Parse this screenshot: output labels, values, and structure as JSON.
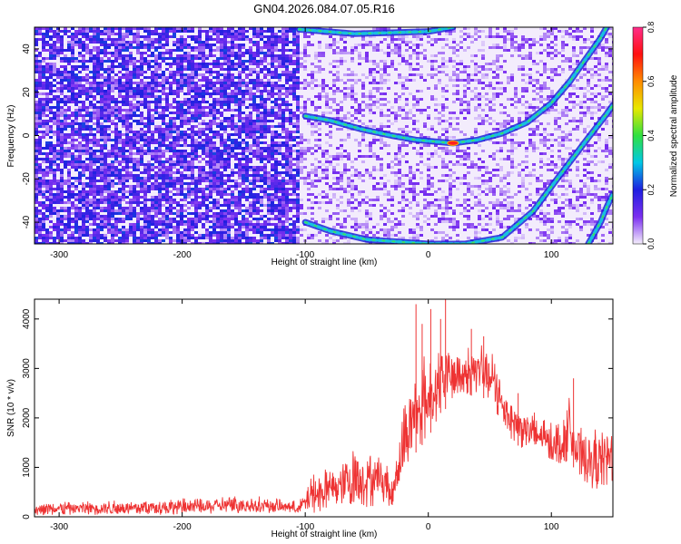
{
  "title": "GN04.2026.084.07.05.R16",
  "chart_data": [
    {
      "type": "heatmap",
      "name": "spectrogram",
      "xlabel": "Height of straight line (km)",
      "ylabel": "Frequency (Hz)",
      "xlim": [
        -320,
        150
      ],
      "ylim": [
        -50,
        50
      ],
      "xticks": [
        -300,
        -200,
        -100,
        0,
        100
      ],
      "yticks": [
        -40,
        -20,
        0,
        20,
        40
      ],
      "colorbar": {
        "label": "Normalized spectral amplitude",
        "range": [
          0,
          0.8
        ],
        "ticks": [
          "0.0",
          "0.2",
          "0.4",
          "0.6",
          "0.8"
        ],
        "stops": [
          "#f4eefc",
          "#7b2ff0",
          "#1f1fe0",
          "#00c8e6",
          "#30e040",
          "#e8e800",
          "#ff8c00",
          "#ff1010",
          "#ff2e8a"
        ]
      },
      "ridges": [
        {
          "name": "upper-ridge",
          "points": [
            [
              -105,
              49
            ],
            [
              -60,
              47
            ],
            [
              0,
              48
            ],
            [
              20,
              50
            ]
          ]
        },
        {
          "name": "main-ridge",
          "points": [
            [
              -100,
              9
            ],
            [
              -80,
              7
            ],
            [
              -55,
              3
            ],
            [
              -30,
              0
            ],
            [
              -10,
              -2
            ],
            [
              10,
              -3
            ],
            [
              20,
              -3.5
            ],
            [
              40,
              -2
            ],
            [
              60,
              1
            ],
            [
              80,
              6
            ],
            [
              100,
              15
            ],
            [
              115,
              25
            ],
            [
              130,
              37
            ],
            [
              140,
              45
            ],
            [
              145,
              50
            ]
          ]
        },
        {
          "name": "lower-ridge",
          "points": [
            [
              -100,
              -40
            ],
            [
              -80,
              -44
            ],
            [
              -50,
              -48
            ],
            [
              0,
              -50
            ],
            [
              30,
              -50
            ],
            [
              60,
              -47
            ],
            [
              85,
              -35
            ],
            [
              110,
              -16
            ],
            [
              130,
              -1
            ],
            [
              145,
              10
            ],
            [
              150,
              14
            ]
          ]
        },
        {
          "name": "edge-ridge",
          "points": [
            [
              130,
              -50
            ],
            [
              140,
              -40
            ],
            [
              145,
              -33
            ],
            [
              150,
              -27
            ]
          ]
        }
      ]
    },
    {
      "type": "line",
      "name": "snr",
      "xlabel": "Height of straight line (km)",
      "ylabel": "SNR (10 * v/v)",
      "xlim": [
        -320,
        150
      ],
      "ylim": [
        0,
        4400
      ],
      "xticks": [
        -300,
        -200,
        -100,
        0,
        100
      ],
      "yticks": [
        0,
        1000,
        2000,
        3000,
        4000
      ],
      "color": "#ee3333",
      "envelope": {
        "x": [
          -320,
          -250,
          -200,
          -150,
          -120,
          -105,
          -95,
          -80,
          -60,
          -45,
          -35,
          -30,
          -20,
          -10,
          0,
          10,
          20,
          30,
          40,
          50,
          60,
          70,
          80,
          90,
          100,
          110,
          115,
          120,
          130,
          140,
          150
        ],
        "low": [
          30,
          30,
          40,
          60,
          80,
          50,
          60,
          120,
          150,
          200,
          300,
          150,
          800,
          1300,
          1600,
          2100,
          2300,
          2400,
          2500,
          2300,
          1800,
          1500,
          1300,
          1200,
          1100,
          900,
          1300,
          800,
          600,
          500,
          600
        ],
        "high": [
          330,
          370,
          400,
          470,
          380,
          330,
          900,
          1100,
          1600,
          1500,
          1300,
          700,
          2500,
          3200,
          3500,
          3600,
          3500,
          3500,
          3600,
          3500,
          2900,
          2400,
          2300,
          2200,
          2000,
          2100,
          2700,
          2000,
          1800,
          1900,
          2100
        ]
      },
      "spikes": [
        [
          -10,
          4300
        ],
        [
          -5,
          3900
        ],
        [
          2,
          4200
        ],
        [
          10,
          4000
        ],
        [
          14,
          4400
        ],
        [
          35,
          3800
        ],
        [
          45,
          3650
        ],
        [
          73,
          2500
        ],
        [
          118,
          2800
        ]
      ]
    }
  ]
}
